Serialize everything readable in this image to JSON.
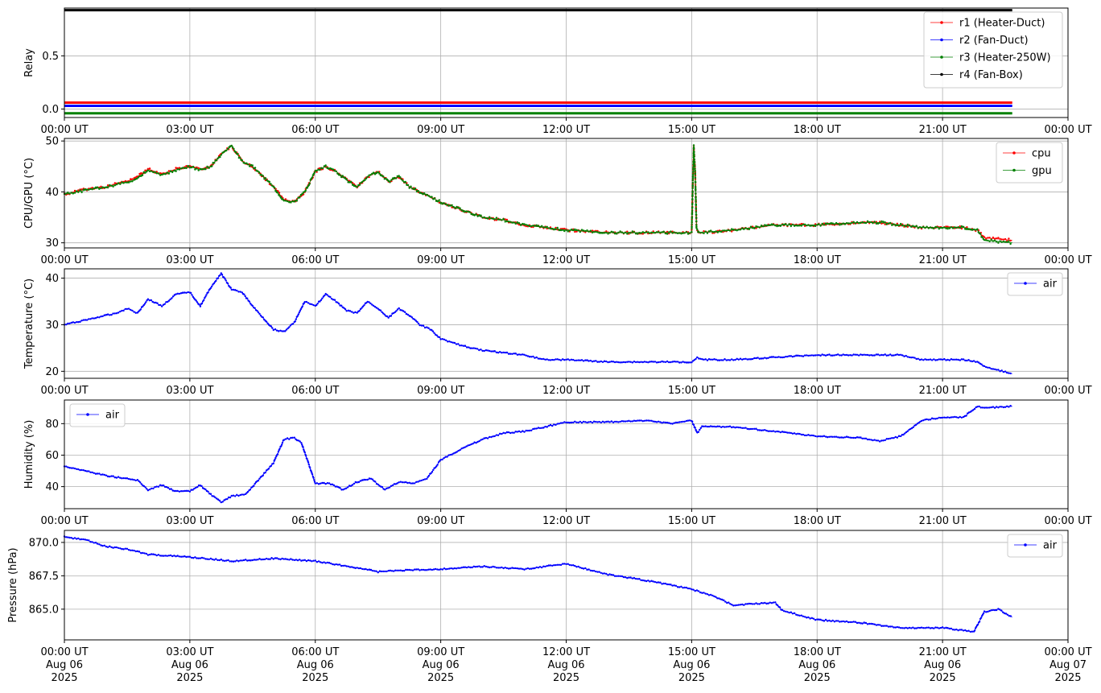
{
  "chart_data": [
    {
      "type": "line",
      "ylabel": "Relay",
      "xlim": [
        "00:00",
        "24:00"
      ],
      "ylim": [
        -0.08,
        0.95
      ],
      "grid": true,
      "yticks": [
        {
          "v": 0.0,
          "label": "0.0"
        },
        {
          "v": 0.5,
          "label": "0.5"
        }
      ],
      "xticks": [
        "00:00 UT",
        "03:00 UT",
        "06:00 UT",
        "09:00 UT",
        "12:00 UT",
        "15:00 UT",
        "18:00 UT",
        "21:00 UT",
        "00:00 UT"
      ],
      "legend_position": "top-right",
      "series": [
        {
          "name": "r1 (Heater-Duct)",
          "color": "#ff0000",
          "line_value": 0.06,
          "x": [
            "00:00",
            "22:40"
          ],
          "y": [
            0,
            0
          ]
        },
        {
          "name": "r2 (Fan-Duct)",
          "color": "#0000ff",
          "line_value": 0.03,
          "x": [
            "00:00",
            "22:40"
          ],
          "y": [
            0,
            0
          ]
        },
        {
          "name": "r3 (Heater-250W)",
          "color": "#008000",
          "line_value": -0.04,
          "x": [
            "00:00",
            "22:40"
          ],
          "y": [
            0,
            0
          ]
        },
        {
          "name": "r4 (Fan-Box)",
          "color": "#000000",
          "line_value": 0.93,
          "x": [
            "00:00",
            "22:40"
          ],
          "y": [
            1,
            1
          ]
        }
      ]
    },
    {
      "type": "line",
      "ylabel": "CPU/GPU (°C)",
      "xlim": [
        "00:00",
        "24:00"
      ],
      "ylim": [
        29,
        50.5
      ],
      "grid": true,
      "yticks": [
        {
          "v": 30,
          "label": "30"
        },
        {
          "v": 40,
          "label": "40"
        },
        {
          "v": 50,
          "label": "50"
        }
      ],
      "xticks": [
        "00:00 UT",
        "03:00 UT",
        "06:00 UT",
        "09:00 UT",
        "12:00 UT",
        "15:00 UT",
        "18:00 UT",
        "21:00 UT",
        "00:00 UT"
      ],
      "legend_position": "top-right",
      "series": [
        {
          "name": "cpu",
          "color": "#ff0000",
          "x": [
            "00:00",
            "00:30",
            "01:00",
            "01:20",
            "01:40",
            "02:00",
            "02:20",
            "02:40",
            "03:00",
            "03:15",
            "03:30",
            "03:45",
            "04:00",
            "04:15",
            "04:30",
            "04:45",
            "05:00",
            "05:15",
            "05:30",
            "05:45",
            "06:00",
            "06:15",
            "06:30",
            "06:45",
            "07:00",
            "07:15",
            "07:30",
            "07:45",
            "08:00",
            "08:15",
            "08:30",
            "08:45",
            "09:00",
            "09:30",
            "10:00",
            "10:30",
            "11:00",
            "11:30",
            "12:00",
            "13:00",
            "14:00",
            "15:00",
            "15:03",
            "15:05",
            "15:07",
            "15:10",
            "15:15",
            "16:00",
            "16:30",
            "17:00",
            "18:00",
            "19:00",
            "19:30",
            "20:00",
            "20:30",
            "21:00",
            "21:30",
            "21:50",
            "22:00",
            "22:40"
          ],
          "y": [
            39.5,
            40.5,
            41,
            41.8,
            42.5,
            44.5,
            43.5,
            44.5,
            45,
            44.5,
            45,
            47.5,
            49,
            46,
            45,
            43,
            41,
            38.5,
            38,
            40,
            44,
            45,
            44,
            42.5,
            41,
            43,
            44,
            42,
            43,
            41,
            40,
            39,
            38,
            36.5,
            35,
            34.5,
            33.5,
            33,
            32.5,
            32,
            32,
            32,
            49,
            44,
            33,
            32,
            32,
            32.5,
            33,
            33.5,
            33.5,
            34,
            34,
            33.5,
            33,
            33,
            33,
            32.5,
            31,
            30.5
          ]
        },
        {
          "name": "gpu",
          "color": "#008000",
          "x": [
            "00:00",
            "00:30",
            "01:00",
            "01:20",
            "01:40",
            "02:00",
            "02:20",
            "02:40",
            "03:00",
            "03:15",
            "03:30",
            "03:45",
            "04:00",
            "04:15",
            "04:30",
            "04:45",
            "05:00",
            "05:15",
            "05:30",
            "05:45",
            "06:00",
            "06:15",
            "06:30",
            "06:45",
            "07:00",
            "07:15",
            "07:30",
            "07:45",
            "08:00",
            "08:15",
            "08:30",
            "08:45",
            "09:00",
            "09:30",
            "10:00",
            "10:30",
            "11:00",
            "11:30",
            "12:00",
            "13:00",
            "14:00",
            "15:00",
            "15:03",
            "15:05",
            "15:07",
            "15:10",
            "15:15",
            "16:00",
            "16:30",
            "17:00",
            "18:00",
            "19:00",
            "19:30",
            "20:00",
            "20:30",
            "21:00",
            "21:30",
            "21:50",
            "22:00",
            "22:40"
          ],
          "y": [
            39.5,
            40.3,
            41,
            41.6,
            42.3,
            44.3,
            43.3,
            44.3,
            45,
            44.3,
            45,
            47.3,
            49,
            46,
            45,
            43,
            41,
            38.3,
            38,
            40,
            44,
            45,
            44,
            42.3,
            41,
            43,
            44,
            42,
            43,
            41,
            40,
            39,
            38,
            36.5,
            35,
            34.5,
            33.5,
            33,
            32.5,
            32,
            32,
            32,
            49,
            44,
            33,
            32,
            32,
            32.5,
            33,
            33.5,
            33.5,
            34,
            34,
            33.5,
            33,
            33,
            33,
            32.5,
            30.5,
            30
          ]
        }
      ]
    },
    {
      "type": "line",
      "ylabel": "Temperature (°C)",
      "xlim": [
        "00:00",
        "24:00"
      ],
      "ylim": [
        18.5,
        42
      ],
      "grid": true,
      "yticks": [
        {
          "v": 20,
          "label": "20"
        },
        {
          "v": 30,
          "label": "30"
        },
        {
          "v": 40,
          "label": "40"
        }
      ],
      "xticks": [
        "00:00 UT",
        "03:00 UT",
        "06:00 UT",
        "09:00 UT",
        "12:00 UT",
        "15:00 UT",
        "18:00 UT",
        "21:00 UT",
        "00:00 UT"
      ],
      "legend_position": "top-right",
      "series": [
        {
          "name": "air",
          "color": "#0000ff",
          "x": [
            "00:00",
            "00:30",
            "01:00",
            "01:15",
            "01:30",
            "01:45",
            "02:00",
            "02:20",
            "02:40",
            "03:00",
            "03:15",
            "03:30",
            "03:45",
            "04:00",
            "04:15",
            "04:30",
            "04:45",
            "05:00",
            "05:15",
            "05:30",
            "05:45",
            "06:00",
            "06:15",
            "06:30",
            "06:45",
            "07:00",
            "07:15",
            "07:30",
            "07:45",
            "08:00",
            "08:15",
            "08:30",
            "08:45",
            "09:00",
            "09:30",
            "10:00",
            "10:30",
            "11:00",
            "11:30",
            "12:00",
            "13:00",
            "14:00",
            "15:00",
            "15:08",
            "15:15",
            "16:00",
            "17:00",
            "18:00",
            "19:00",
            "20:00",
            "20:30",
            "21:00",
            "21:30",
            "21:50",
            "22:00",
            "22:40"
          ],
          "y": [
            30,
            31,
            32,
            32.5,
            33.5,
            32.5,
            35.5,
            34,
            36.5,
            37,
            34,
            38,
            41,
            37.5,
            37,
            34,
            31.5,
            29,
            28.5,
            30.5,
            35,
            34,
            36.5,
            35,
            33,
            32.5,
            35,
            33.5,
            31.5,
            33.5,
            32,
            30,
            29,
            27,
            25.5,
            24.5,
            24,
            23.5,
            22.5,
            22.5,
            22,
            22,
            22,
            23,
            22.5,
            22.5,
            23,
            23.5,
            23.5,
            23.5,
            22.5,
            22.5,
            22.5,
            22,
            21,
            19.5
          ]
        }
      ]
    },
    {
      "type": "line",
      "ylabel": "Humidity (%)",
      "xlim": [
        "00:00",
        "24:00"
      ],
      "ylim": [
        26,
        95
      ],
      "grid": true,
      "yticks": [
        {
          "v": 40,
          "label": "40"
        },
        {
          "v": 60,
          "label": "60"
        },
        {
          "v": 80,
          "label": "80"
        }
      ],
      "xticks": [
        "00:00 UT",
        "03:00 UT",
        "06:00 UT",
        "09:00 UT",
        "12:00 UT",
        "15:00 UT",
        "18:00 UT",
        "21:00 UT",
        "00:00 UT"
      ],
      "legend_position": "top-left",
      "series": [
        {
          "name": "air",
          "color": "#0000ff",
          "x": [
            "00:00",
            "00:30",
            "01:00",
            "01:30",
            "01:45",
            "02:00",
            "02:20",
            "02:40",
            "03:00",
            "03:15",
            "03:30",
            "03:45",
            "04:00",
            "04:20",
            "04:40",
            "05:00",
            "05:15",
            "05:30",
            "05:40",
            "06:00",
            "06:20",
            "06:40",
            "07:00",
            "07:20",
            "07:40",
            "08:00",
            "08:20",
            "08:40",
            "09:00",
            "09:30",
            "10:00",
            "10:30",
            "11:00",
            "11:30",
            "12:00",
            "13:00",
            "14:00",
            "14:30",
            "15:00",
            "15:08",
            "15:15",
            "16:00",
            "17:00",
            "18:00",
            "19:00",
            "19:30",
            "20:00",
            "20:30",
            "21:00",
            "21:30",
            "21:50",
            "22:00",
            "22:40"
          ],
          "y": [
            53,
            50,
            47,
            45,
            44,
            38,
            41,
            37,
            37,
            41,
            35,
            30,
            34,
            35,
            45,
            55,
            70,
            71,
            68,
            42,
            42,
            38,
            43,
            45,
            38,
            43,
            42,
            45,
            57,
            64,
            70,
            74,
            75,
            78,
            81,
            81,
            82,
            80,
            82,
            74,
            78,
            78,
            75,
            72,
            71,
            69,
            72,
            82,
            84,
            84,
            91,
            90,
            91
          ]
        }
      ]
    },
    {
      "type": "line",
      "ylabel": "Pressure (hPa)",
      "xlim": [
        "00:00",
        "24:00"
      ],
      "ylim": [
        862.7,
        870.9
      ],
      "grid": true,
      "yticks": [
        {
          "v": 865.0,
          "label": "865.0"
        },
        {
          "v": 867.5,
          "label": "867.5"
        },
        {
          "v": 870.0,
          "label": "870.0"
        }
      ],
      "xticks": [
        "00:00 UT\nAug 06\n2025",
        "03:00 UT\nAug 06\n2025",
        "06:00 UT\nAug 06\n2025",
        "09:00 UT\nAug 06\n2025",
        "12:00 UT\nAug 06\n2025",
        "15:00 UT\nAug 06\n2025",
        "18:00 UT\nAug 06\n2025",
        "21:00 UT\nAug 06\n2025",
        "00:00 UT\nAug 07\n2025"
      ],
      "legend_position": "top-right",
      "series": [
        {
          "name": "air",
          "color": "#0000ff",
          "x": [
            "00:00",
            "00:30",
            "01:00",
            "01:30",
            "02:00",
            "03:00",
            "04:00",
            "05:00",
            "06:00",
            "07:00",
            "07:30",
            "08:00",
            "09:00",
            "10:00",
            "11:00",
            "12:00",
            "13:00",
            "14:00",
            "15:00",
            "15:30",
            "16:00",
            "16:30",
            "17:00",
            "17:10",
            "18:00",
            "19:00",
            "20:00",
            "21:00",
            "21:30",
            "21:45",
            "22:00",
            "22:20",
            "22:40"
          ],
          "y": [
            870.4,
            870.2,
            869.7,
            869.5,
            869.1,
            868.9,
            868.6,
            868.8,
            868.6,
            868.1,
            867.8,
            867.9,
            868.0,
            868.2,
            868.0,
            868.4,
            867.6,
            867.1,
            866.5,
            866.0,
            865.3,
            865.4,
            865.5,
            864.9,
            864.2,
            864.0,
            863.6,
            863.6,
            863.4,
            863.3,
            864.8,
            865.0,
            864.4
          ]
        }
      ]
    }
  ]
}
